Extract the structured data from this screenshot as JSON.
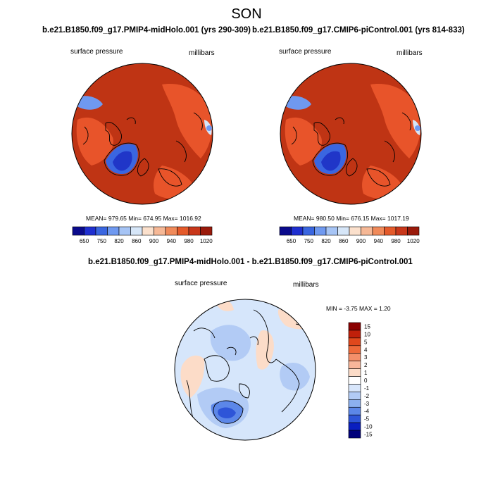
{
  "title": "SON",
  "panels": [
    {
      "name": "midHolo",
      "header": "b.e21.B1850.f09_g17.PMIP4-midHolo.001 (yrs 290-309)",
      "left_label": "surface pressure",
      "right_label": "millibars",
      "stats": "MEAN= 979.65  Min= 674.95  Max= 1016.92",
      "colorbar_ticks": [
        "650",
        "750",
        "820",
        "860",
        "900",
        "940",
        "980",
        "1020"
      ]
    },
    {
      "name": "piControl",
      "header": "b.e21.B1850.f09_g17.CMIP6-piControl.001 (yrs 814-833)",
      "left_label": "surface pressure",
      "right_label": "millibars",
      "stats": "MEAN= 980.50  Min= 676.15  Max= 1017.19",
      "colorbar_ticks": [
        "650",
        "750",
        "820",
        "860",
        "900",
        "940",
        "980",
        "1020"
      ]
    }
  ],
  "difference": {
    "header": "b.e21.B1850.f09_g17.PMIP4-midHolo.001 - b.e21.B1850.f09_g17.CMIP6-piControl.001",
    "left_label": "surface pressure",
    "right_label": "millibars",
    "stats": "MIN =  -3.75 MAX =   1.20",
    "colorbar_ticks": [
      "15",
      "10",
      "5",
      "4",
      "3",
      "2",
      "1",
      "0",
      "-1",
      "-2",
      "-3",
      "-4",
      "-5",
      "-10",
      "-15"
    ]
  },
  "colors": {
    "abs_scale": [
      "#0a0a8c",
      "#1f2fd0",
      "#3a66e0",
      "#6f99f0",
      "#a6c4f5",
      "#d6e6f8",
      "#fbe0cc",
      "#f6b896",
      "#f08a5a",
      "#e45a2a",
      "#c8371a",
      "#9a1a0a"
    ],
    "diff_scale": [
      "#8b0000",
      "#c0200a",
      "#e0481c",
      "#ee6a3a",
      "#f4906a",
      "#f8b69a",
      "#fcdcc8",
      "#ffffff",
      "#d8e6fb",
      "#b2cbf5",
      "#8cb0ef",
      "#5c87e8",
      "#2e55d8",
      "#0a1ec0",
      "#00007a"
    ],
    "ocean_abs": "#bf3414",
    "land_abs": "#e8542a",
    "greenland_low": "#2036c8",
    "diff_base": "#d6e6fb"
  }
}
